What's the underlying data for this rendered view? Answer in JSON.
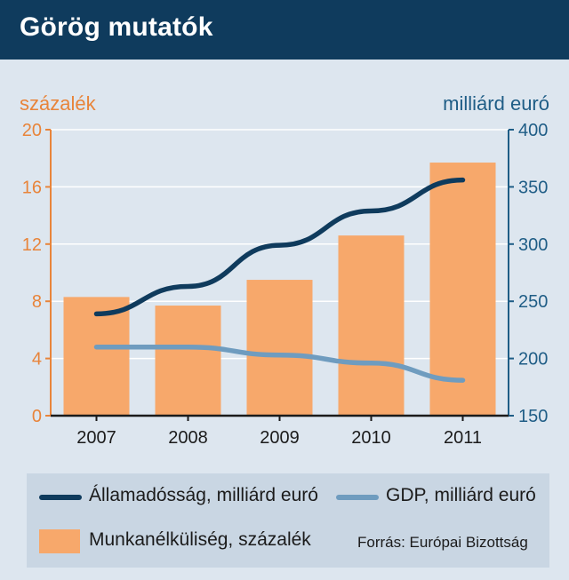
{
  "header": {
    "title": "Görög mutatók"
  },
  "colors": {
    "header_bg": "#0f3b5d",
    "background": "#dde6ef",
    "bars": "#f7a86b",
    "debt_line": "#0f3b5d",
    "gdp_line": "#6f9cbf",
    "left_axis_text": "#e8843a",
    "right_axis_text": "#1f5d86"
  },
  "chart_data": {
    "type": "bar+line",
    "categories": [
      "2007",
      "2008",
      "2009",
      "2010",
      "2011"
    ],
    "left_axis": {
      "label": "százalék",
      "ticks": [
        0,
        4,
        8,
        12,
        16,
        20
      ],
      "range": [
        0,
        20
      ]
    },
    "right_axis": {
      "label": "milliárd euró",
      "ticks": [
        150,
        200,
        250,
        300,
        350,
        400
      ],
      "range": [
        150,
        400
      ]
    },
    "bars": {
      "name": "Munkanélküliség, százalék",
      "axis": "left",
      "values": [
        8.3,
        7.7,
        9.5,
        12.6,
        17.7
      ]
    },
    "lines": [
      {
        "name": "Államadósság, milliárd euró",
        "axis": "right",
        "values": [
          239,
          263,
          299,
          329,
          356
        ]
      },
      {
        "name": "GDP, milliárd euró",
        "axis": "right",
        "values": [
          210,
          210,
          203,
          196,
          181
        ]
      }
    ]
  },
  "legend": {
    "debt": "Államadósság, milliárd euró",
    "gdp": "GDP, milliárd euró",
    "unemployment": "Munkanélküliség, százalék"
  },
  "source": "Forrás: Európai Bizottság"
}
